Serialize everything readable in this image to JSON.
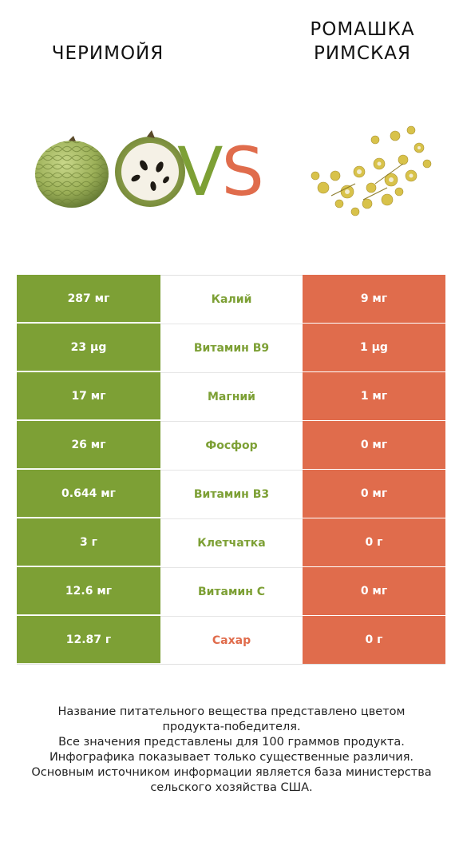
{
  "titles": {
    "left": "Черимойя",
    "right_line1": "Ромашка",
    "right_line2": "римская"
  },
  "vs": {
    "v": "V",
    "s": "S"
  },
  "colors": {
    "winner_left": "#7da035",
    "winner_right": "#e06c4c"
  },
  "rows": [
    {
      "left": "287 мг",
      "nutrient": "Калий",
      "right": "9 мг",
      "winner": "left"
    },
    {
      "left": "23 µg",
      "nutrient": "Витамин B9",
      "right": "1 µg",
      "winner": "left"
    },
    {
      "left": "17 мг",
      "nutrient": "Магний",
      "right": "1 мг",
      "winner": "left"
    },
    {
      "left": "26 мг",
      "nutrient": "Фосфор",
      "right": "0 мг",
      "winner": "left"
    },
    {
      "left": "0.644 мг",
      "nutrient": "Витамин B3",
      "right": "0 мг",
      "winner": "left"
    },
    {
      "left": "3 г",
      "nutrient": "Клетчатка",
      "right": "0 г",
      "winner": "left"
    },
    {
      "left": "12.6 мг",
      "nutrient": "Витамин C",
      "right": "0 мг",
      "winner": "left"
    },
    {
      "left": "12.87 г",
      "nutrient": "Сахар",
      "right": "0 г",
      "winner": "right"
    }
  ],
  "footer": {
    "line1": "Название питательного вещества представлено цветом",
    "line2": "продукта-победителя.",
    "line3": "Все значения представлены для 100 граммов продукта.",
    "line4": "Инфографика показывает только существенные различия.",
    "line5": "Основным источником информации является база министерства",
    "line6": "сельского хозяйства США."
  }
}
